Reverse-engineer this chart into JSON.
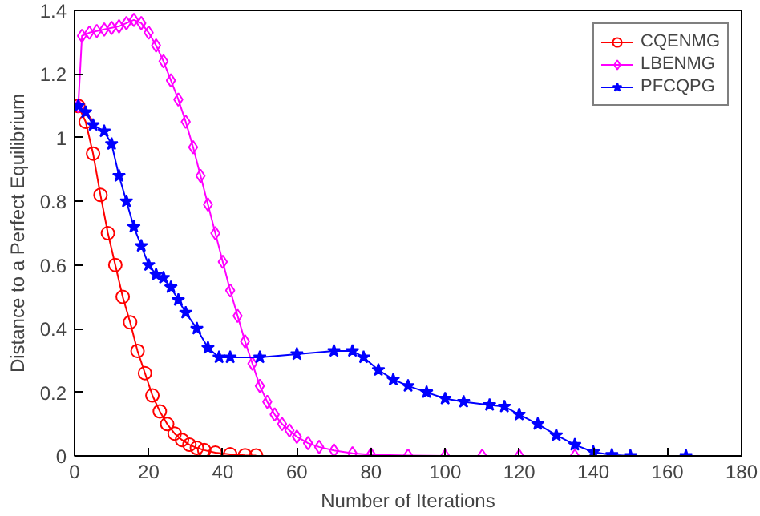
{
  "chart_data": {
    "type": "line",
    "xlabel": "Number of Iterations",
    "ylabel": "Distance to a Perfect Equilibrium",
    "xlim": [
      0,
      180
    ],
    "ylim": [
      0,
      1.4
    ],
    "xticks": [
      0,
      20,
      40,
      60,
      80,
      100,
      120,
      140,
      160,
      180
    ],
    "yticks": [
      0,
      0.2,
      0.4,
      0.6,
      0.8,
      1,
      1.2,
      1.4
    ],
    "grid": false,
    "legend": "top right",
    "line_style": "solid",
    "series": [
      {
        "name": "CQENMG",
        "color": "#ff0000",
        "marker": "circle",
        "x": [
          1,
          3,
          5,
          7,
          9,
          11,
          13,
          15,
          17,
          19,
          21,
          23,
          25,
          27,
          29,
          31,
          33,
          35,
          38,
          42,
          46,
          49
        ],
        "values": [
          1.1,
          1.05,
          0.95,
          0.82,
          0.7,
          0.6,
          0.5,
          0.42,
          0.33,
          0.26,
          0.19,
          0.14,
          0.1,
          0.07,
          0.05,
          0.035,
          0.025,
          0.018,
          0.01,
          0.005,
          0.002,
          0.001
        ]
      },
      {
        "name": "LBENMG",
        "color": "#ff00ff",
        "marker": "diamond",
        "x": [
          1,
          2,
          4,
          6,
          8,
          10,
          12,
          14,
          16,
          18,
          20,
          22,
          24,
          26,
          28,
          30,
          32,
          34,
          36,
          38,
          40,
          42,
          44,
          46,
          48,
          50,
          52,
          54,
          56,
          58,
          60,
          63,
          66,
          70,
          75,
          80,
          90,
          100,
          110,
          120,
          135
        ],
        "values": [
          1.1,
          1.32,
          1.33,
          1.335,
          1.34,
          1.345,
          1.35,
          1.36,
          1.37,
          1.36,
          1.33,
          1.29,
          1.24,
          1.18,
          1.12,
          1.05,
          0.97,
          0.88,
          0.79,
          0.7,
          0.61,
          0.52,
          0.44,
          0.36,
          0.29,
          0.22,
          0.17,
          0.13,
          0.1,
          0.08,
          0.06,
          0.04,
          0.028,
          0.017,
          0.008,
          0.004,
          0.001,
          0,
          0,
          0,
          0
        ]
      },
      {
        "name": "PFCQPG",
        "color": "#0000ff",
        "marker": "star",
        "x": [
          1,
          3,
          5,
          8,
          10,
          12,
          14,
          16,
          18,
          20,
          22,
          24,
          26,
          28,
          30,
          33,
          36,
          39,
          42,
          50,
          60,
          70,
          75,
          78,
          82,
          86,
          90,
          95,
          100,
          105,
          112,
          116,
          120,
          125,
          130,
          135,
          140,
          145,
          150,
          165
        ],
        "values": [
          1.1,
          1.08,
          1.04,
          1.02,
          0.98,
          0.88,
          0.8,
          0.72,
          0.66,
          0.6,
          0.57,
          0.56,
          0.53,
          0.49,
          0.45,
          0.4,
          0.34,
          0.31,
          0.31,
          0.31,
          0.32,
          0.33,
          0.33,
          0.31,
          0.27,
          0.24,
          0.22,
          0.2,
          0.18,
          0.17,
          0.16,
          0.155,
          0.13,
          0.1,
          0.065,
          0.035,
          0.012,
          0.003,
          0,
          0
        ]
      }
    ]
  }
}
